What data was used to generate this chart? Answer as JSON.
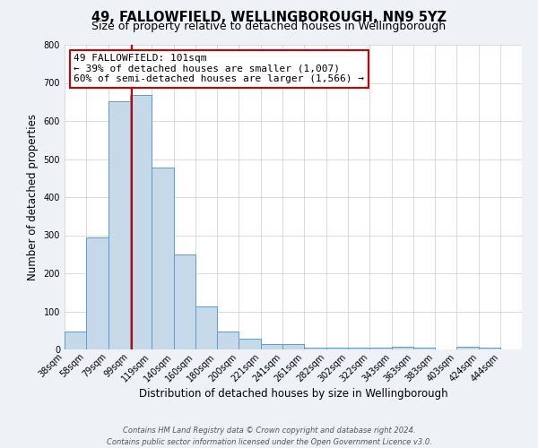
{
  "title": "49, FALLOWFIELD, WELLINGBOROUGH, NN9 5YZ",
  "subtitle": "Size of property relative to detached houses in Wellingborough",
  "xlabel": "Distribution of detached houses by size in Wellingborough",
  "ylabel": "Number of detached properties",
  "bin_labels": [
    "38sqm",
    "58sqm",
    "79sqm",
    "99sqm",
    "119sqm",
    "140sqm",
    "160sqm",
    "180sqm",
    "200sqm",
    "221sqm",
    "241sqm",
    "261sqm",
    "282sqm",
    "302sqm",
    "322sqm",
    "343sqm",
    "363sqm",
    "383sqm",
    "403sqm",
    "424sqm",
    "444sqm"
  ],
  "bin_edges": [
    38,
    58,
    79,
    99,
    119,
    140,
    160,
    180,
    200,
    221,
    241,
    261,
    282,
    302,
    322,
    343,
    363,
    383,
    403,
    424,
    444
  ],
  "bar_heights": [
    47,
    293,
    651,
    669,
    477,
    250,
    113,
    48,
    28,
    14,
    13,
    5,
    4,
    5,
    4,
    7,
    5,
    0,
    8,
    5,
    0
  ],
  "bar_color": "#c6d9e8",
  "bar_edge_color": "#5b9bd5",
  "property_value": 101,
  "vline_color": "#cc0000",
  "annotation_line1": "49 FALLOWFIELD: 101sqm",
  "annotation_line2": "← 39% of detached houses are smaller (1,007)",
  "annotation_line3": "60% of semi-detached houses are larger (1,566) →",
  "annotation_box_color": "#ffffff",
  "annotation_box_edge_color": "#cc0000",
  "ylim": [
    0,
    800
  ],
  "yticks": [
    0,
    100,
    200,
    300,
    400,
    500,
    600,
    700,
    800
  ],
  "footer_line1": "Contains HM Land Registry data © Crown copyright and database right 2024.",
  "footer_line2": "Contains public sector information licensed under the Open Government Licence v3.0.",
  "background_color": "#eef2f7",
  "plot_background_color": "#ffffff",
  "grid_color": "#c8cdd4",
  "title_fontsize": 10.5,
  "subtitle_fontsize": 9,
  "axis_label_fontsize": 8.5,
  "tick_fontsize": 7,
  "annotation_fontsize": 8,
  "footer_fontsize": 6
}
